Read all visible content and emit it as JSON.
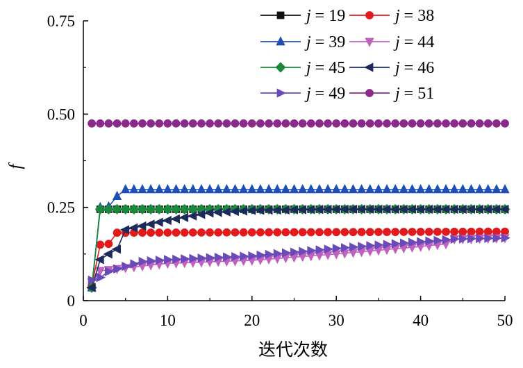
{
  "chart_data": {
    "type": "line",
    "xlabel": "迭代次数",
    "ylabel": "f",
    "xlim": [
      0,
      50
    ],
    "ylim": [
      0,
      0.75
    ],
    "x_ticks": [
      "0",
      "10",
      "20",
      "30",
      "40",
      "50"
    ],
    "y_ticks": [
      "0",
      "0.25",
      "0.50",
      "0.75"
    ],
    "legend_position": "top-right",
    "grid": false,
    "series": [
      {
        "name": "j = 19",
        "legend_j": "j",
        "legend_eq": " = 19",
        "color": "#111111",
        "marker": "square",
        "control": [
          [
            1,
            0.035
          ],
          [
            2,
            0.245
          ],
          [
            50,
            0.245
          ]
        ]
      },
      {
        "name": "j = 38",
        "legend_j": "j",
        "legend_eq": " = 38",
        "color": "#e31a1c",
        "marker": "circle",
        "control": [
          [
            1,
            0.04
          ],
          [
            2,
            0.15
          ],
          [
            3,
            0.152
          ],
          [
            4,
            0.182
          ],
          [
            50,
            0.185
          ]
        ]
      },
      {
        "name": "j = 39",
        "legend_j": "j",
        "legend_eq": " = 39",
        "color": "#1f4fb4",
        "marker": "triangle-up",
        "control": [
          [
            1,
            0.035
          ],
          [
            2,
            0.25
          ],
          [
            3,
            0.252
          ],
          [
            4,
            0.28
          ],
          [
            5,
            0.298
          ],
          [
            50,
            0.298
          ]
        ]
      },
      {
        "name": "j = 44",
        "legend_j": "j",
        "legend_eq": " = 44",
        "color": "#c060c0",
        "marker": "triangle-down",
        "control": [
          [
            1,
            0.05
          ],
          [
            2,
            0.08
          ],
          [
            5,
            0.088
          ],
          [
            10,
            0.1
          ],
          [
            20,
            0.108
          ],
          [
            30,
            0.125
          ],
          [
            40,
            0.145
          ],
          [
            43,
            0.152
          ],
          [
            44,
            0.165
          ],
          [
            50,
            0.168
          ]
        ]
      },
      {
        "name": "j = 45",
        "legend_j": "j",
        "legend_eq": " = 45",
        "color": "#1a8a3a",
        "marker": "diamond",
        "control": [
          [
            1,
            0.035
          ],
          [
            2,
            0.245
          ],
          [
            50,
            0.245
          ]
        ]
      },
      {
        "name": "j = 46",
        "legend_j": "j",
        "legend_eq": " = 46",
        "color": "#1c2a5c",
        "marker": "triangle-left",
        "control": [
          [
            1,
            0.035
          ],
          [
            2,
            0.11
          ],
          [
            3,
            0.125
          ],
          [
            4,
            0.138
          ],
          [
            5,
            0.19
          ],
          [
            7,
            0.2
          ],
          [
            10,
            0.215
          ],
          [
            15,
            0.235
          ],
          [
            20,
            0.242
          ],
          [
            30,
            0.245
          ],
          [
            50,
            0.245
          ]
        ]
      },
      {
        "name": "j = 49",
        "legend_j": "j",
        "legend_eq": " = 49",
        "color": "#6a4ab8",
        "marker": "triangle-right",
        "control": [
          [
            1,
            0.055
          ],
          [
            2,
            0.062
          ],
          [
            3,
            0.078
          ],
          [
            5,
            0.092
          ],
          [
            7,
            0.105
          ],
          [
            10,
            0.11
          ],
          [
            20,
            0.12
          ],
          [
            30,
            0.14
          ],
          [
            40,
            0.158
          ],
          [
            44,
            0.165
          ],
          [
            50,
            0.168
          ]
        ]
      },
      {
        "name": "j = 51",
        "legend_j": "j",
        "legend_eq": " = 51",
        "color": "#8a2a8a",
        "marker": "circle",
        "control": [
          [
            1,
            0.475
          ],
          [
            50,
            0.475
          ]
        ]
      }
    ]
  }
}
